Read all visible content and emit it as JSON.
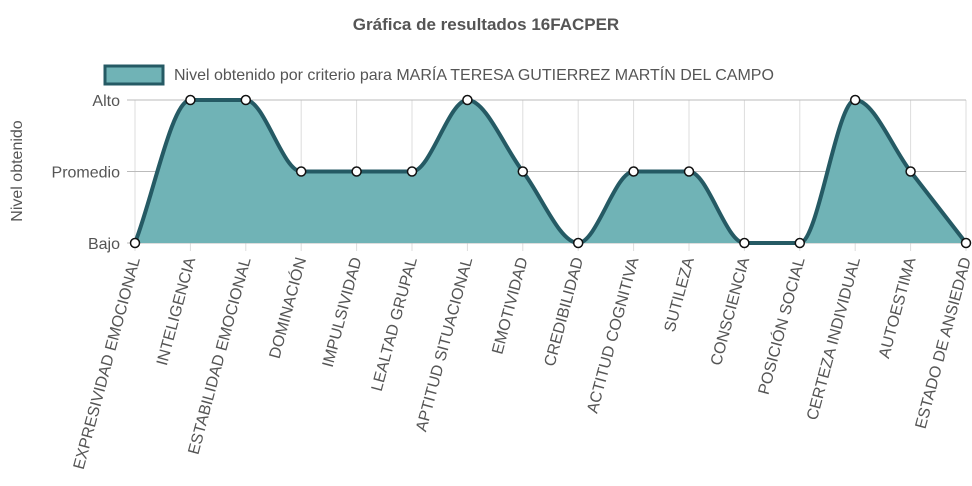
{
  "chart_data": {
    "type": "area",
    "title": "Gráfica de resultados 16FACPER",
    "ylabel": "Nivel obtenido",
    "y_levels": [
      "Bajo",
      "Promedio",
      "Alto"
    ],
    "ylim": [
      0,
      2
    ],
    "categories": [
      "EXPRESIVIDAD EMOCIONAL",
      "INTELIGENCIA",
      "ESTABILIDAD EMOCIONAL",
      "DOMINACIÓN",
      "IMPULSIVIDAD",
      "LEALTAD GRUPAL",
      "APTITUD SITUACIONAL",
      "EMOTIVIDAD",
      "CREDIBILIDAD",
      "ACTITUD COGNITIVA",
      "SUTILEZA",
      "CONSCIENCIA",
      "POSICIÓN SOCIAL",
      "CERTEZA INDIVIDUAL",
      "AUTOESTIMA",
      "ESTADO DE ANSIEDAD"
    ],
    "series": [
      {
        "name": "Nivel obtenido por criterio para MARÍA TERESA GUTIERREZ MARTÍN DEL CAMPO",
        "values": [
          0,
          2,
          2,
          1,
          1,
          1,
          2,
          1,
          0,
          1,
          1,
          0,
          0,
          2,
          1,
          0
        ],
        "fill_color": "#70b3b6",
        "line_color": "#255a64"
      }
    ],
    "grid": true,
    "legend_position": "top"
  }
}
